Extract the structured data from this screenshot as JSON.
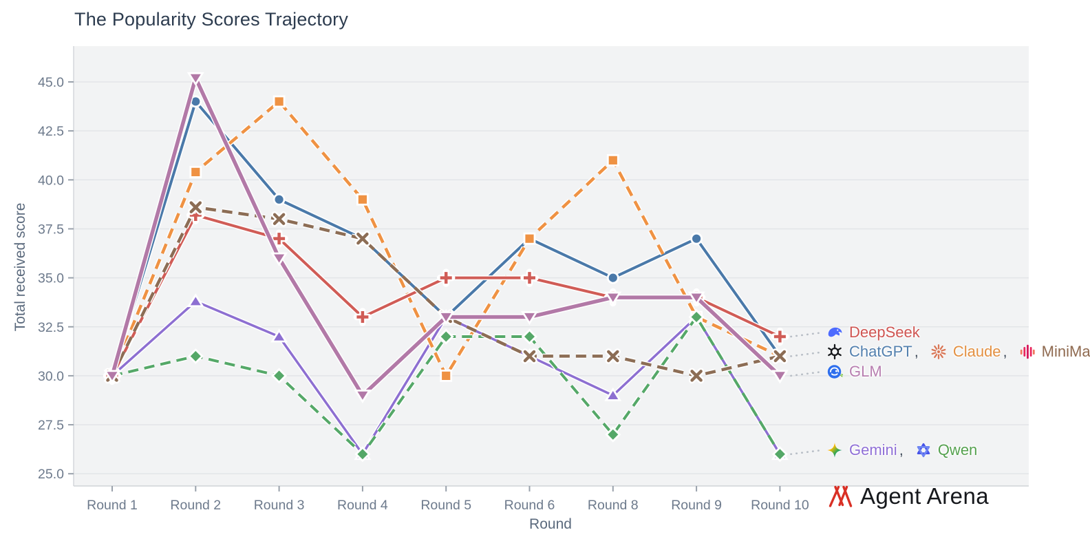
{
  "title": "The Popularity Scores Trajectory",
  "chart_data": {
    "type": "line",
    "x_label": "Round",
    "y_label": "Total received score",
    "categories": [
      "Round 1",
      "Round 2",
      "Round 3",
      "Round 4",
      "Round 5",
      "Round 6",
      "Round 8",
      "Round 9",
      "Round 10"
    ],
    "y_ticks": [
      25.0,
      27.5,
      30.0,
      32.5,
      35.0,
      37.5,
      40.0,
      42.5,
      45.0
    ],
    "ylim": [
      24.4,
      46.8
    ],
    "grid": true,
    "legend_position": "right-of-final-points",
    "series": [
      {
        "name": "ChatGPT",
        "color": "#4a79a9",
        "line_style": "solid",
        "line_width": 4,
        "marker": "circle",
        "values": [
          30,
          44,
          39,
          37,
          33,
          37,
          35,
          37,
          31
        ]
      },
      {
        "name": "Gemini",
        "color": "#8d6fd1",
        "line_style": "solid",
        "line_width": 3.5,
        "marker": "triangle-up",
        "values": [
          30,
          33.8,
          32,
          26,
          33,
          31,
          29,
          33,
          26
        ]
      },
      {
        "name": "Claude",
        "color": "#ef9243",
        "line_style": "dashed",
        "line_width": 4.5,
        "marker": "square",
        "values": [
          30,
          40.4,
          44,
          39,
          30,
          37,
          41,
          33,
          31
        ]
      },
      {
        "name": "Qwen",
        "color": "#55a868",
        "line_style": "dashed",
        "line_width": 4,
        "marker": "diamond",
        "values": [
          30,
          31,
          30,
          26,
          32,
          32,
          27,
          33,
          26
        ]
      },
      {
        "name": "DeepSeek",
        "color": "#d05c56",
        "line_style": "solid",
        "line_width": 4,
        "marker": "plus",
        "values": [
          30,
          38.2,
          37,
          33,
          35,
          35,
          34,
          34,
          32
        ]
      },
      {
        "name": "MiniMax",
        "color": "#8c6d55",
        "line_style": "dashed",
        "line_width": 4.5,
        "marker": "x",
        "values": [
          30,
          38.6,
          38,
          37,
          33,
          31,
          31,
          30,
          31
        ]
      },
      {
        "name": "GLM",
        "color": "#b279a7",
        "line_style": "solid",
        "line_width": 5.5,
        "marker": "triangle-down",
        "values": [
          30,
          45.2,
          36,
          29,
          33,
          33,
          34,
          34,
          30
        ]
      }
    ]
  },
  "legend": {
    "separator": ",",
    "rows": [
      {
        "y_value": 32,
        "entries": [
          {
            "icon": "deepseek-logo-icon",
            "label": "DeepSeek",
            "color": "#cf5552"
          }
        ]
      },
      {
        "y_value": 31,
        "entries": [
          {
            "icon": "chatgpt-logo-icon",
            "label": "ChatGPT",
            "color": "#5380ae"
          },
          {
            "icon": "claude-logo-icon",
            "label": "Claude",
            "color": "#e39042"
          },
          {
            "icon": "minimax-logo-icon",
            "label": "MiniMax",
            "color": "#8f6a50"
          }
        ]
      },
      {
        "y_value": 30,
        "entries": [
          {
            "icon": "glm-logo-icon",
            "label": "GLM",
            "color": "#b77fb0"
          }
        ]
      },
      {
        "y_value": 26,
        "entries": [
          {
            "icon": "gemini-logo-icon",
            "label": "Gemini",
            "color": "#8f6fd6"
          },
          {
            "icon": "qwen-logo-icon",
            "label": "Qwen",
            "color": "#55a14f"
          }
        ]
      }
    ]
  },
  "branding": {
    "logo_mark": "M",
    "logo_text": "Agent Arena"
  }
}
